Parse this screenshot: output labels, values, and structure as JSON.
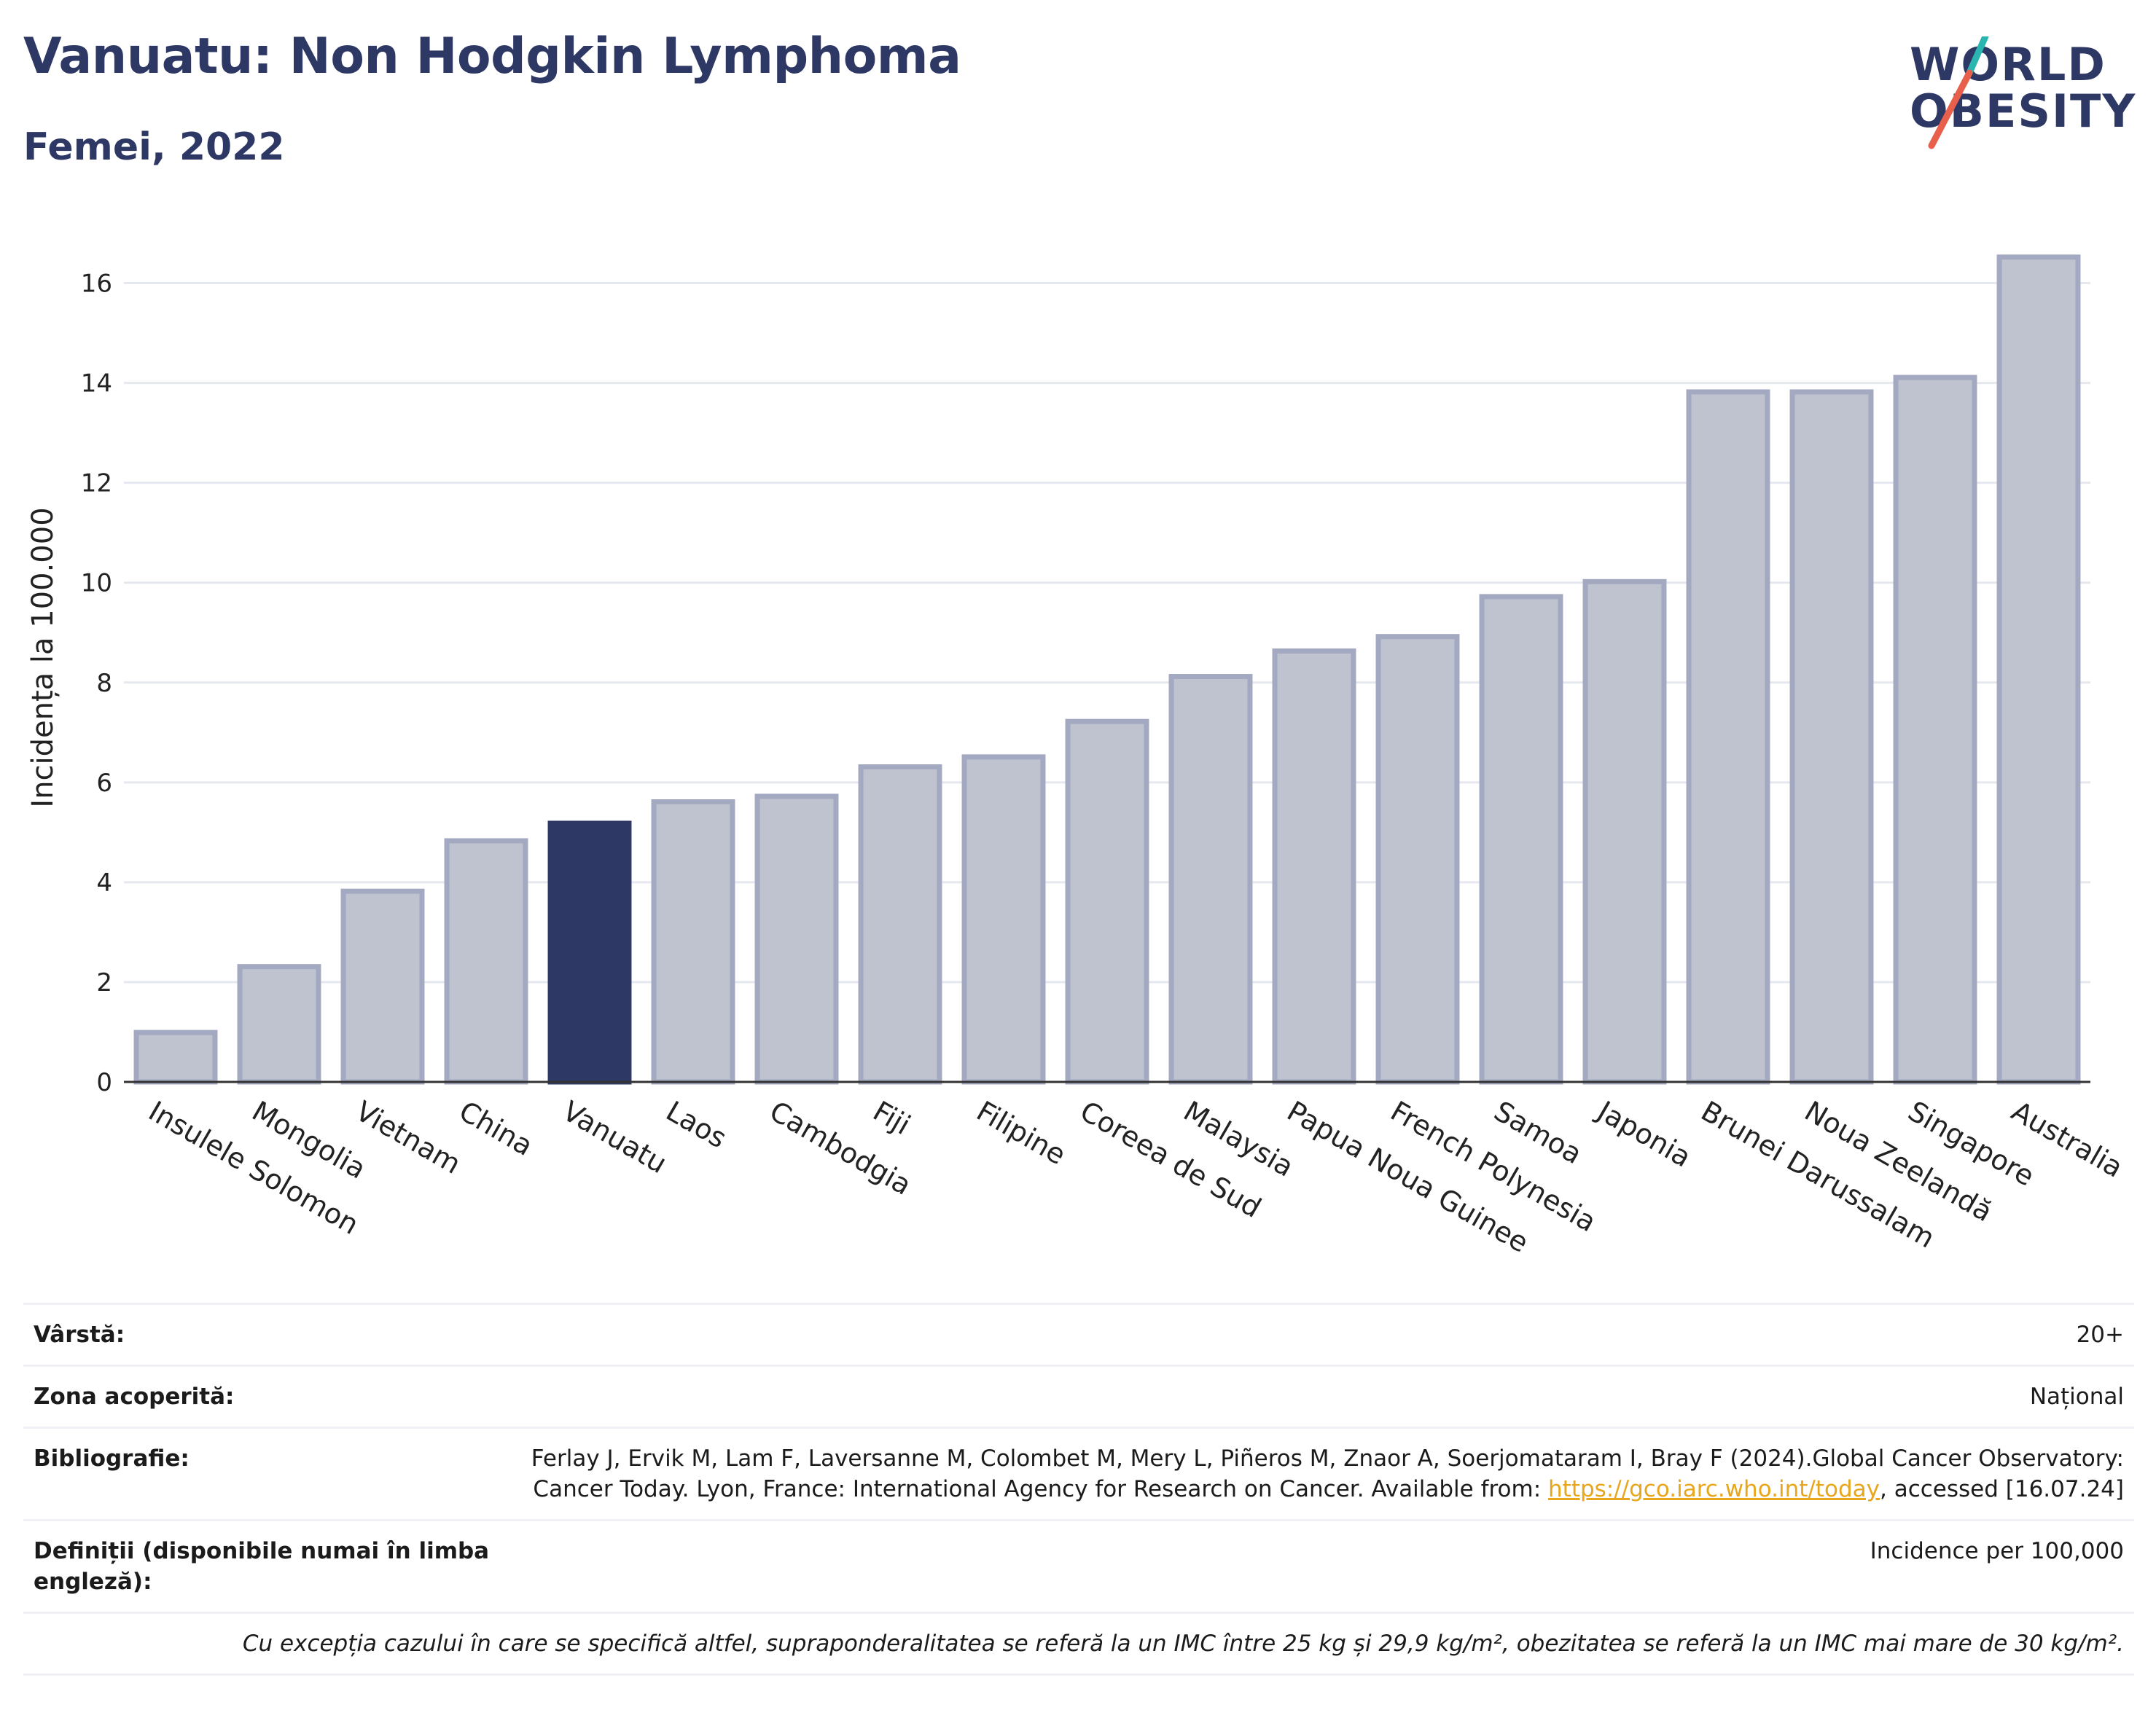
{
  "header": {
    "title": "Vanuatu: Non Hodgkin Lymphoma",
    "subtitle": "Femei, 2022"
  },
  "logo": {
    "line1": "WORLD",
    "line2": "OBESITY",
    "accent_colors": [
      "#2bb5b0",
      "#e8604c"
    ]
  },
  "colors": {
    "bar_default": "#bfc3d0",
    "bar_border": "#a3a9c0",
    "bar_highlight": "#2d3865",
    "title": "#2d3865",
    "link": "#e7a61c"
  },
  "chart_data": {
    "type": "bar",
    "title": "Vanuatu: Non Hodgkin Lymphoma",
    "subtitle": "Femei, 2022",
    "ylabel": "Incidența la 100.000",
    "xlabel": "",
    "ylim": [
      0,
      17
    ],
    "yticks": [
      0,
      2,
      4,
      6,
      8,
      10,
      12,
      14,
      16
    ],
    "grid": true,
    "highlight": "Vanuatu",
    "categories": [
      "Insulele Solomon",
      "Mongolia",
      "Vietnam",
      "China",
      "Vanuatu",
      "Laos",
      "Cambodgia",
      "Fiji",
      "Filipine",
      "Coreea de Sud",
      "Malaysia",
      "Papua Noua Guinee",
      "French Polynesia",
      "Samoa",
      "Japonia",
      "Brunei Darussalam",
      "Noua Zeelandă",
      "Singapore",
      "Australia"
    ],
    "values": [
      0.99,
      2.31,
      3.82,
      4.83,
      5.18,
      5.61,
      5.72,
      6.31,
      6.51,
      7.22,
      8.12,
      8.63,
      8.92,
      9.72,
      10.02,
      13.82,
      13.82,
      14.11,
      16.52
    ]
  },
  "info": {
    "rows": [
      {
        "label": "Vârstă:",
        "value": "20+"
      },
      {
        "label": "Zona acoperită:",
        "value": "Național"
      },
      {
        "label": "Bibliografie:",
        "value_pre": "Ferlay J, Ervik M, Lam F, Laversanne M, Colombet M, Mery L, Piñeros M, Znaor A, Soerjomataram I, Bray F (2024).Global Cancer Observatory: Cancer Today. Lyon, France: International Agency for Research on Cancer. Available from: ",
        "link": "https://gco.iarc.who.int/today",
        "value_post": ", accessed [16.07.24]"
      },
      {
        "label": "Definiții (disponibile numai în limba engleză):",
        "value": "Incidence per 100,000"
      }
    ],
    "note": "Cu excepția cazului în care se specifică altfel, supraponderalitatea se referă la un IMC între 25 kg și 29,9 kg/m², obezitatea se referă la un IMC mai mare de 30 kg/m²."
  }
}
